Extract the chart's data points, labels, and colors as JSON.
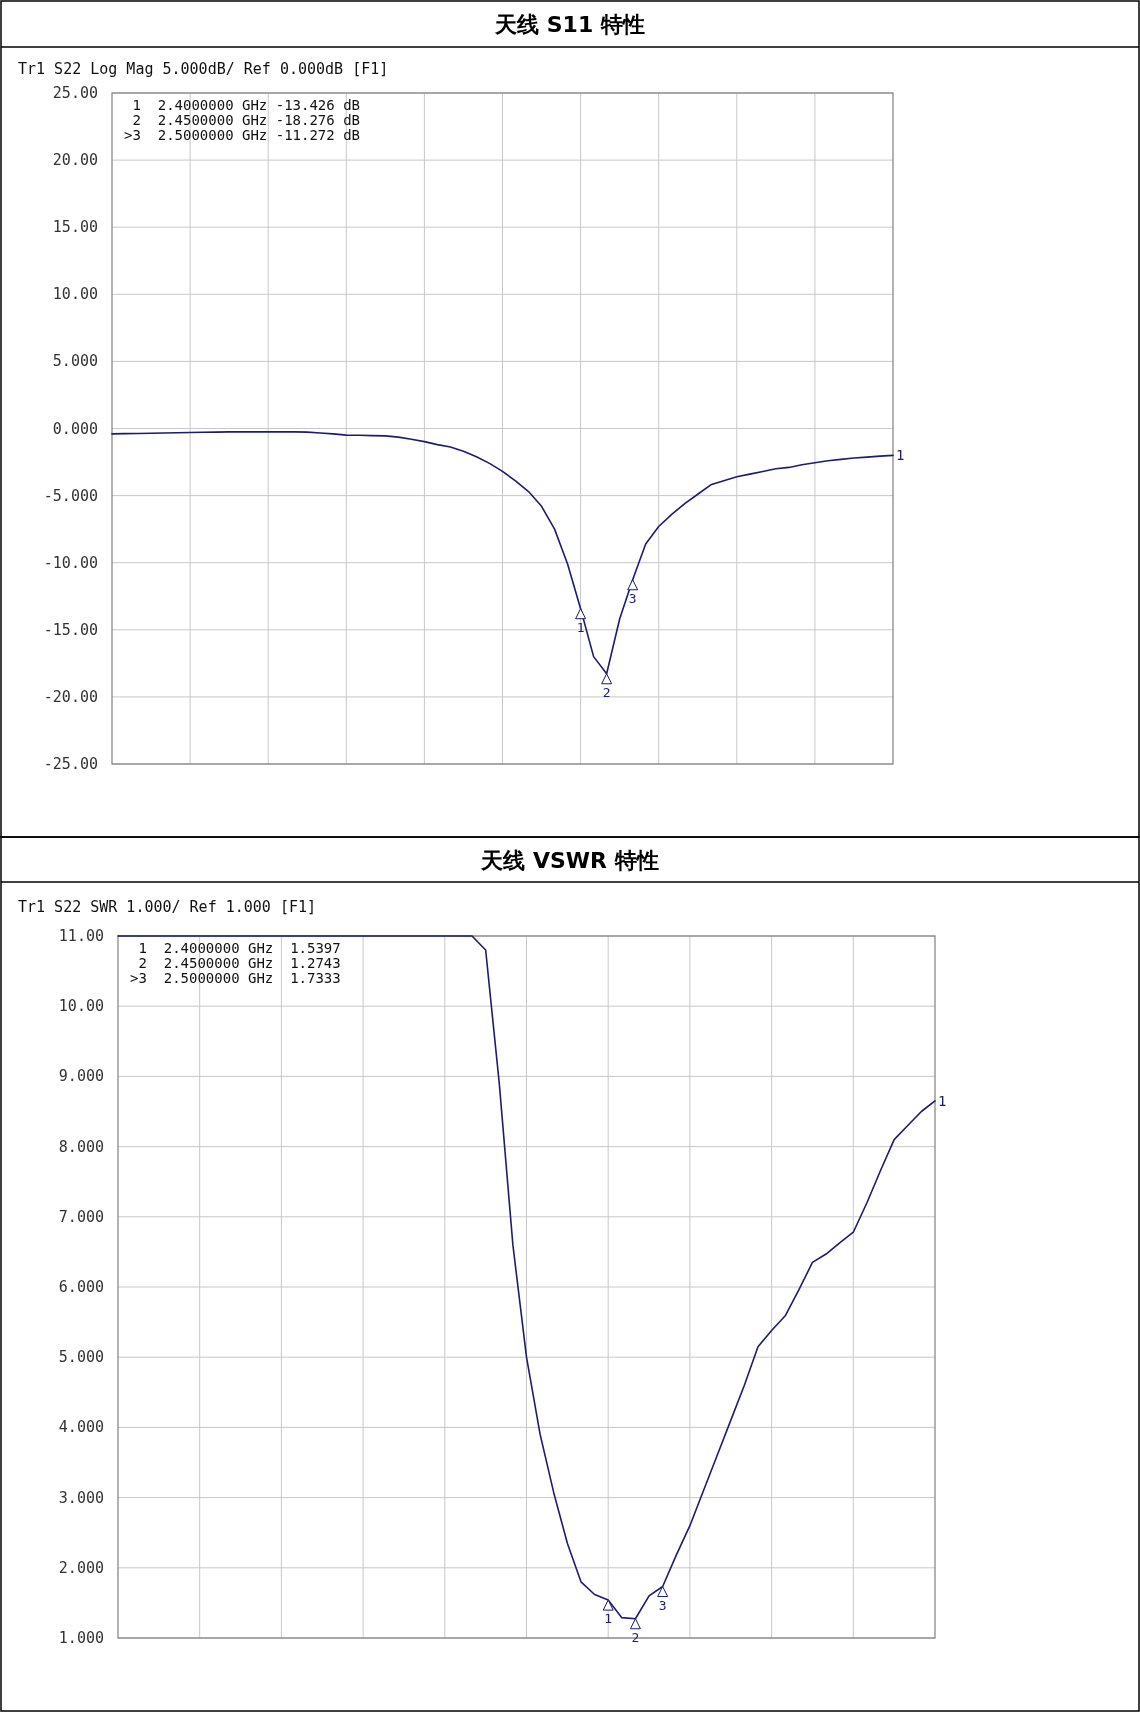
{
  "chart_data": [
    {
      "type": "line",
      "title": "天线 S11 特性",
      "grid": true,
      "tick_labels": "y",
      "categories": [
        null,
        null,
        null,
        null,
        null,
        null,
        null,
        null,
        null,
        null,
        null,
        null,
        null,
        null,
        null,
        null,
        null,
        null,
        null,
        null,
        null,
        null,
        null,
        null,
        null,
        null,
        null,
        null,
        null,
        null,
        null,
        null,
        null,
        null,
        null,
        null,
        null,
        null,
        null,
        null,
        null,
        null,
        null,
        null,
        null,
        null,
        null,
        null,
        null,
        null,
        null,
        null,
        null,
        null,
        null,
        null,
        null,
        null,
        null,
        null,
        null
      ],
      "ylim": [
        -25,
        25
      ],
      "yticks": [
        {
          "value": 25,
          "label": "25.00"
        },
        {
          "value": 20,
          "label": "20.00"
        },
        {
          "value": 15,
          "label": "15.00"
        },
        {
          "value": 10,
          "label": "10.00"
        },
        {
          "value": 5,
          "label": "5.000"
        },
        {
          "value": 0,
          "label": "0.000"
        },
        {
          "value": -5,
          "label": "-5.000"
        },
        {
          "value": -10,
          "label": "-10.00"
        },
        {
          "value": -15,
          "label": "-15.00"
        },
        {
          "value": -20,
          "label": "-20.00"
        },
        {
          "value": -25,
          "label": "-25.00"
        }
      ],
      "annotations": [
        "Tr1 S22 Log Mag 5.000dB/ Ref 0.000dB [F1]",
        " 1  2.4000000 GHz -13.426 dB",
        " 2  2.4500000 GHz -18.276 dB",
        ">3  2.5000000 GHz -11.272 dB",
        {
          "text": "1",
          "y": -13.426
        },
        {
          "text": "2",
          "y": -18.276
        },
        {
          "text": "3",
          "y": -11.272
        },
        "1"
      ],
      "series": [
        {
          "color": "#1c1c72",
          "values": [
            -0.4,
            -0.38,
            -0.37,
            -0.35,
            -0.33,
            -0.32,
            -0.3,
            -0.28,
            -0.27,
            -0.25,
            -0.25,
            -0.25,
            -0.25,
            -0.25,
            -0.25,
            -0.27,
            -0.33,
            -0.4,
            -0.49,
            -0.5,
            -0.53,
            -0.55,
            -0.64,
            -0.8,
            -0.98,
            -1.2,
            -1.38,
            -1.7,
            -2.1,
            -2.6,
            -3.2,
            -3.9,
            -4.7,
            -5.8,
            -7.5,
            -10.1,
            -13.426,
            -17.0,
            -18.276,
            -14.2,
            -11.272,
            -8.6,
            -7.3,
            -6.4,
            -5.6,
            -4.9,
            -4.2,
            -3.9,
            -3.6,
            -3.4,
            -3.2,
            -3.0,
            -2.9,
            -2.7,
            -2.55,
            -2.4,
            -2.3,
            -2.2,
            -2.13,
            -2.06,
            -2.0
          ]
        }
      ]
    },
    {
      "type": "line",
      "title": "天线 VSWR 特性",
      "grid": true,
      "tick_labels": "y",
      "categories": [
        null,
        null,
        null,
        null,
        null,
        null,
        null,
        null,
        null,
        null,
        null,
        null,
        null,
        null,
        null,
        null,
        null,
        null,
        null,
        null,
        null,
        null,
        null,
        null,
        null,
        null,
        null,
        null,
        null,
        null,
        null,
        null,
        null,
        null,
        null,
        null,
        null,
        null,
        null,
        null,
        null,
        null,
        null,
        null,
        null,
        null,
        null,
        null,
        null,
        null,
        null,
        null,
        null,
        null,
        null,
        null,
        null,
        null,
        null,
        null,
        null
      ],
      "ylim": [
        1,
        11
      ],
      "yticks": [
        {
          "value": 11,
          "label": "11.00"
        },
        {
          "value": 10,
          "label": "10.00"
        },
        {
          "value": 9,
          "label": "9.000"
        },
        {
          "value": 8,
          "label": "8.000"
        },
        {
          "value": 7,
          "label": "7.000"
        },
        {
          "value": 6,
          "label": "6.000"
        },
        {
          "value": 5,
          "label": "5.000"
        },
        {
          "value": 4,
          "label": "4.000"
        },
        {
          "value": 3,
          "label": "3.000"
        },
        {
          "value": 2,
          "label": "2.000"
        },
        {
          "value": 1,
          "label": "1.000"
        }
      ],
      "annotations": [
        "Tr1 S22 SWR 1.000/ Ref 1.000 [F1]",
        " 1  2.4000000 GHz  1.5397",
        " 2  2.4500000 GHz  1.2743",
        ">3  2.5000000 GHz  1.7333",
        {
          "text": "1",
          "y": 1.5397
        },
        {
          "text": "2",
          "y": 1.2743
        },
        {
          "text": "3",
          "y": 1.7333
        },
        "1"
      ],
      "series": [
        {
          "color": "#1c1c72",
          "values": [
            11,
            11,
            11,
            11,
            11,
            11,
            11,
            11,
            11,
            11,
            11,
            11,
            11,
            11,
            11,
            11,
            11,
            11,
            11,
            11,
            11,
            11,
            11,
            11,
            11,
            11,
            11,
            10.8,
            8.9,
            6.6,
            5.0,
            3.9,
            3.07,
            2.35,
            1.8,
            1.62,
            1.5397,
            1.29,
            1.2743,
            1.6,
            1.7333,
            2.18,
            2.6,
            3.1,
            3.6,
            4.1,
            4.6,
            5.15,
            5.38,
            5.59,
            5.96,
            6.35,
            6.47,
            6.63,
            6.78,
            7.2,
            7.66,
            8.1,
            8.3,
            8.5,
            8.65
          ]
        }
      ]
    }
  ]
}
